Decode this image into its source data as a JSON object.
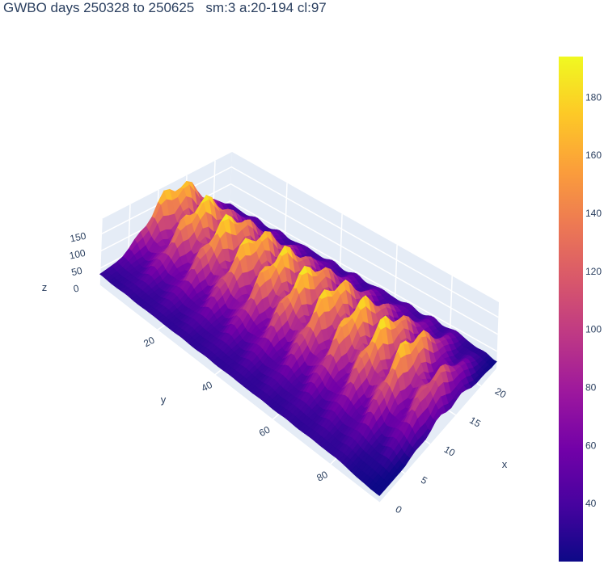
{
  "chart_data": {
    "type": "surface",
    "title": "GWBO days 250328 to 250625   sm:3 a:20-194 cl:97",
    "x": {
      "label": "x",
      "range": [
        0,
        23
      ],
      "ticks": [
        "0",
        "5",
        "10",
        "15",
        "20"
      ]
    },
    "y": {
      "label": "y",
      "range": [
        0,
        97
      ],
      "ticks": [
        "20",
        "40",
        "60",
        "80"
      ]
    },
    "z": {
      "label": "z",
      "range": [
        0,
        194
      ],
      "ticks": [
        "0",
        "50",
        "100",
        "150"
      ]
    },
    "colorscale": "plasma",
    "colorbar": {
      "range": [
        20,
        194
      ],
      "ticks": [
        "40",
        "60",
        "80",
        "100",
        "120",
        "140",
        "160",
        "180"
      ]
    },
    "colors": [
      "#0d0887",
      "#46039f",
      "#7201a8",
      "#9c179e",
      "#bd3786",
      "#d8576b",
      "#ed7953",
      "#fb9f3a",
      "#fdca26",
      "#f0f921"
    ],
    "grid": true,
    "legend": "colorbar-right"
  }
}
